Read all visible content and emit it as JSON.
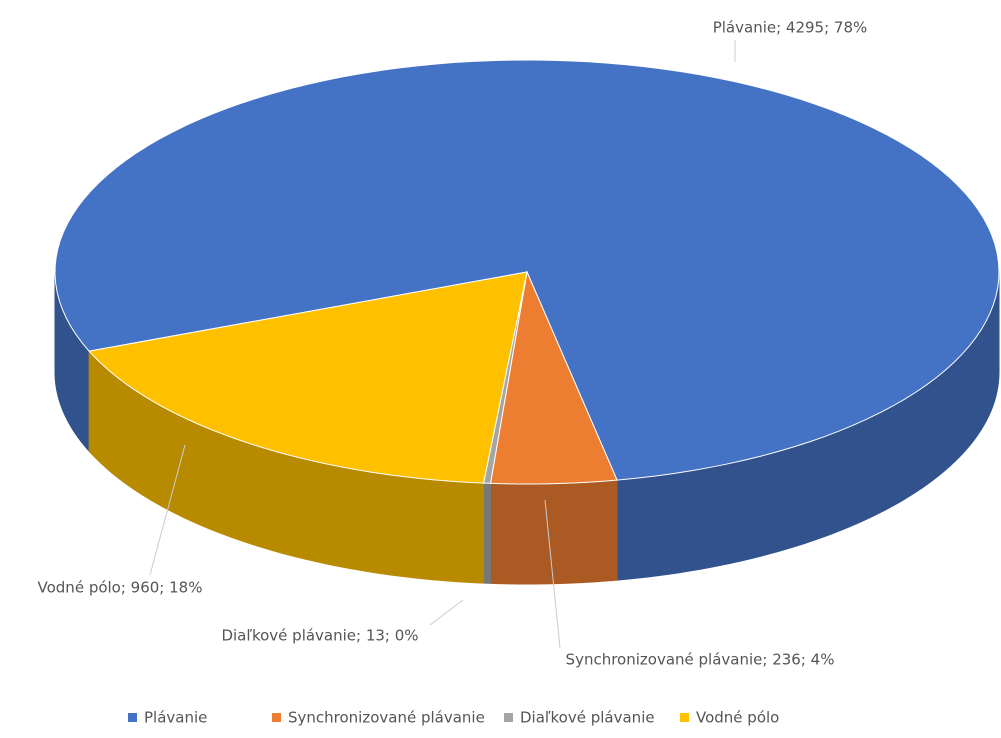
{
  "chart_data": {
    "type": "pie3d",
    "categories": [
      "Plávanie",
      "Synchronizované plávanie",
      "Diaľkové plávanie",
      "Vodné pólo"
    ],
    "values": [
      4295,
      236,
      13,
      960
    ],
    "value_labels": [
      "Plávanie; 4295; 78%",
      "Synchronizované plávanie; 236; 4%",
      "Diaľkové plávanie; 13; 0%",
      "Vodné pólo; 960; 18%"
    ],
    "colors": [
      "#4472c4",
      "#ed7d31",
      "#a5a5a5",
      "#ffc000"
    ],
    "legend": "bottom"
  }
}
